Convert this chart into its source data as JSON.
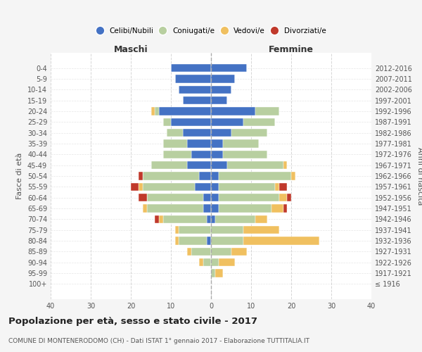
{
  "age_groups": [
    "100+",
    "95-99",
    "90-94",
    "85-89",
    "80-84",
    "75-79",
    "70-74",
    "65-69",
    "60-64",
    "55-59",
    "50-54",
    "45-49",
    "40-44",
    "35-39",
    "30-34",
    "25-29",
    "20-24",
    "15-19",
    "10-14",
    "5-9",
    "0-4"
  ],
  "birth_years": [
    "≤ 1916",
    "1917-1921",
    "1922-1926",
    "1927-1931",
    "1932-1936",
    "1937-1941",
    "1942-1946",
    "1947-1951",
    "1952-1956",
    "1957-1961",
    "1962-1966",
    "1967-1971",
    "1972-1976",
    "1977-1981",
    "1982-1986",
    "1987-1991",
    "1992-1996",
    "1997-2001",
    "2002-2006",
    "2007-2011",
    "2012-2016"
  ],
  "maschi": {
    "celibi": [
      0,
      0,
      0,
      0,
      1,
      0,
      1,
      2,
      2,
      4,
      3,
      6,
      5,
      6,
      7,
      10,
      13,
      7,
      8,
      9,
      10
    ],
    "coniugati": [
      0,
      0,
      2,
      5,
      7,
      8,
      11,
      14,
      14,
      13,
      14,
      9,
      7,
      6,
      4,
      2,
      1,
      0,
      0,
      0,
      0
    ],
    "vedovi": [
      0,
      0,
      1,
      1,
      1,
      1,
      1,
      1,
      0,
      1,
      0,
      0,
      0,
      0,
      0,
      0,
      1,
      0,
      0,
      0,
      0
    ],
    "divorziati": [
      0,
      0,
      0,
      0,
      0,
      0,
      1,
      0,
      2,
      2,
      1,
      0,
      0,
      0,
      0,
      0,
      0,
      0,
      0,
      0,
      0
    ]
  },
  "femmine": {
    "nubili": [
      0,
      0,
      0,
      0,
      0,
      0,
      1,
      2,
      2,
      2,
      2,
      4,
      3,
      3,
      5,
      8,
      11,
      4,
      5,
      6,
      9
    ],
    "coniugate": [
      0,
      1,
      2,
      5,
      8,
      8,
      10,
      13,
      15,
      14,
      18,
      14,
      11,
      9,
      9,
      8,
      6,
      0,
      0,
      0,
      0
    ],
    "vedove": [
      0,
      2,
      4,
      4,
      19,
      9,
      3,
      3,
      2,
      1,
      1,
      1,
      0,
      0,
      0,
      0,
      0,
      0,
      0,
      0,
      0
    ],
    "divorziate": [
      0,
      0,
      0,
      0,
      0,
      0,
      0,
      1,
      1,
      2,
      0,
      0,
      0,
      0,
      0,
      0,
      0,
      0,
      0,
      0,
      0
    ]
  },
  "colors": {
    "celibi": "#4472c4",
    "coniugati": "#b8cfa0",
    "vedovi": "#f0c060",
    "divorziati": "#c0392b"
  },
  "title": "Popolazione per età, sesso e stato civile - 2017",
  "subtitle": "COMUNE DI MONTENERODOMO (CH) - Dati ISTAT 1° gennaio 2017 - Elaborazione TUTTITALIA.IT",
  "xlabel_left": "Maschi",
  "xlabel_right": "Femmine",
  "ylabel_left": "Fasce di età",
  "ylabel_right": "Anni di nascita",
  "xlim": 40,
  "bg_color": "#f5f5f5",
  "plot_bg_color": "#ffffff",
  "legend_labels": [
    "Celibi/Nubili",
    "Coniugati/e",
    "Vedovi/e",
    "Divorziati/e"
  ]
}
